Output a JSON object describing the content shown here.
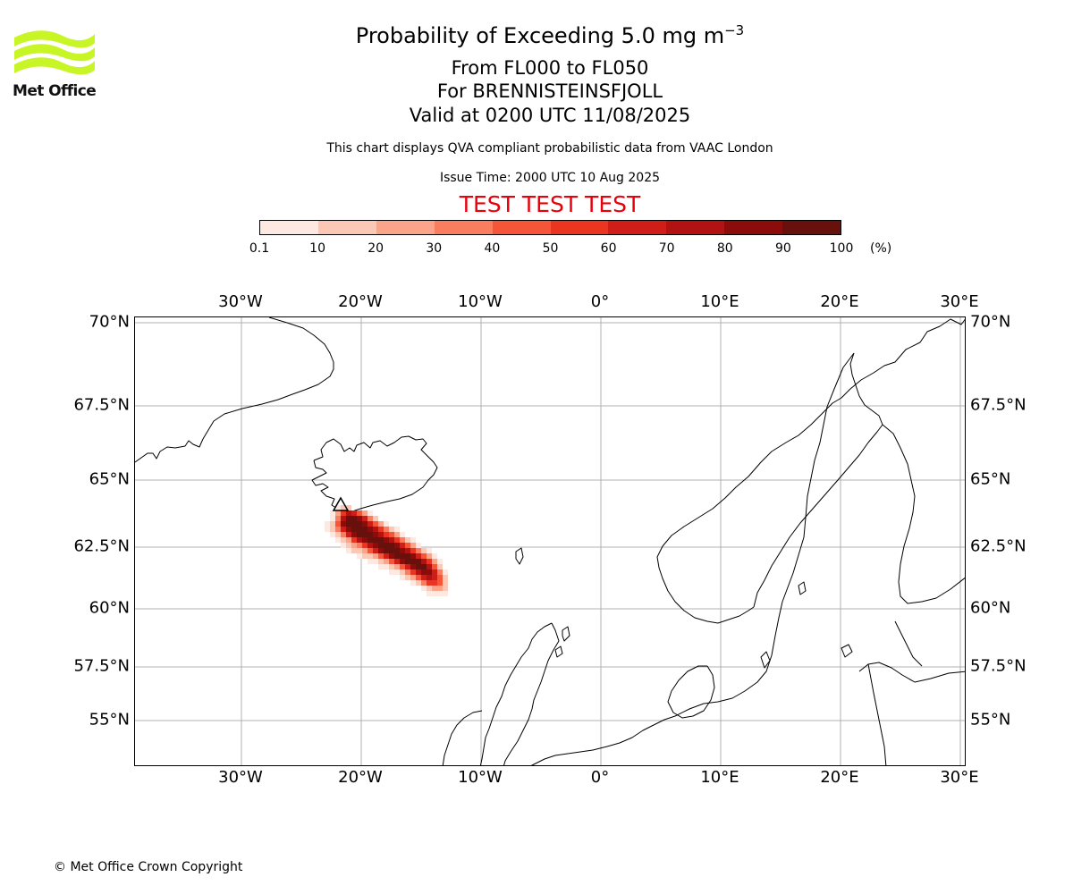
{
  "logo": {
    "text": "Met Office",
    "brand_color": "#c8f526"
  },
  "header": {
    "title_main": "Probability of Exceeding 5.0 mg m",
    "title_exponent": "−3",
    "subtitle_levels": "From FL000 to FL050",
    "subtitle_volcano": "For BRENNISTEINSFJOLL",
    "subtitle_valid": "Valid at 0200 UTC 11/08/2025",
    "disclaimer": "This chart displays QVA compliant probabilistic data from VAAC London",
    "issue_time": "Issue Time: 2000 UTC 10 Aug 2025",
    "test_banner": "TEST TEST TEST",
    "test_color": "#e8000b"
  },
  "colorbar": {
    "ticks": [
      "0.1",
      "10",
      "20",
      "30",
      "40",
      "50",
      "60",
      "70",
      "80",
      "90",
      "100"
    ],
    "unit": "(%)",
    "colors": [
      "#fee9e2",
      "#fcc8b6",
      "#fca48a",
      "#fb7d5f",
      "#f65638",
      "#ea3520",
      "#cf1d17",
      "#b31212",
      "#8c0c0c",
      "#68100b"
    ]
  },
  "map": {
    "lon_labels": [
      "30°W",
      "20°W",
      "10°W",
      "0°",
      "10°E",
      "20°E",
      "30°E"
    ],
    "lat_labels": [
      "70°N",
      "67.5°N",
      "65°N",
      "62.5°N",
      "60°N",
      "57.5°N",
      "55°N"
    ],
    "volcano_marker": "triangle",
    "plume_probability_grid": [
      [
        0,
        0,
        1,
        2,
        2,
        0,
        0,
        0,
        0,
        0,
        0,
        0,
        0,
        0,
        0,
        0,
        0,
        0,
        0,
        0,
        0,
        0,
        0
      ],
      [
        0,
        1,
        3,
        6,
        8,
        7,
        5,
        3,
        1,
        0,
        0,
        0,
        0,
        0,
        0,
        0,
        0,
        0,
        0,
        0,
        0,
        0,
        0
      ],
      [
        0,
        1,
        4,
        8,
        10,
        10,
        9,
        7,
        4,
        2,
        0,
        0,
        0,
        0,
        0,
        0,
        0,
        0,
        0,
        0,
        0,
        0,
        0
      ],
      [
        1,
        2,
        5,
        9,
        10,
        10,
        10,
        9,
        7,
        5,
        3,
        1,
        0,
        0,
        0,
        0,
        0,
        0,
        0,
        0,
        0,
        0,
        0
      ],
      [
        1,
        2,
        4,
        7,
        9,
        10,
        10,
        10,
        9,
        8,
        6,
        4,
        2,
        1,
        0,
        0,
        0,
        0,
        0,
        0,
        0,
        0,
        0
      ],
      [
        0,
        1,
        2,
        4,
        7,
        9,
        10,
        10,
        10,
        9,
        8,
        6,
        5,
        3,
        1,
        0,
        0,
        0,
        0,
        0,
        0,
        0,
        0
      ],
      [
        0,
        0,
        1,
        2,
        3,
        6,
        8,
        9,
        10,
        10,
        10,
        9,
        8,
        6,
        4,
        2,
        1,
        0,
        0,
        0,
        0,
        0,
        0
      ],
      [
        0,
        0,
        0,
        1,
        2,
        3,
        4,
        6,
        8,
        9,
        10,
        10,
        10,
        9,
        7,
        5,
        3,
        1,
        0,
        0,
        0,
        0,
        0
      ],
      [
        0,
        0,
        0,
        0,
        1,
        2,
        2,
        3,
        5,
        7,
        9,
        10,
        10,
        10,
        9,
        8,
        6,
        4,
        2,
        1,
        0,
        0,
        0
      ],
      [
        0,
        0,
        0,
        0,
        0,
        0,
        1,
        2,
        2,
        3,
        5,
        7,
        9,
        10,
        10,
        10,
        9,
        7,
        5,
        3,
        1,
        0,
        0
      ],
      [
        0,
        0,
        0,
        0,
        0,
        0,
        0,
        0,
        1,
        1,
        2,
        3,
        5,
        7,
        9,
        10,
        10,
        10,
        8,
        6,
        3,
        1,
        0
      ],
      [
        0,
        0,
        0,
        0,
        0,
        0,
        0,
        0,
        0,
        0,
        1,
        1,
        2,
        3,
        5,
        7,
        9,
        10,
        10,
        8,
        5,
        2,
        0
      ],
      [
        0,
        0,
        0,
        0,
        0,
        0,
        0,
        0,
        0,
        0,
        0,
        0,
        1,
        1,
        2,
        4,
        6,
        8,
        9,
        9,
        7,
        4,
        1
      ],
      [
        0,
        0,
        0,
        0,
        0,
        0,
        0,
        0,
        0,
        0,
        0,
        0,
        0,
        0,
        1,
        2,
        3,
        5,
        7,
        8,
        7,
        5,
        2
      ],
      [
        0,
        0,
        0,
        0,
        0,
        0,
        0,
        0,
        0,
        0,
        0,
        0,
        0,
        0,
        0,
        0,
        1,
        2,
        4,
        6,
        6,
        5,
        2
      ],
      [
        0,
        0,
        0,
        0,
        0,
        0,
        0,
        0,
        0,
        0,
        0,
        0,
        0,
        0,
        0,
        0,
        0,
        0,
        1,
        2,
        3,
        3,
        2
      ],
      [
        0,
        0,
        0,
        0,
        0,
        0,
        0,
        0,
        0,
        0,
        0,
        0,
        0,
        0,
        0,
        0,
        0,
        0,
        0,
        1,
        1,
        1,
        1
      ]
    ]
  },
  "footer": {
    "copyright": "© Met Office Crown Copyright"
  }
}
